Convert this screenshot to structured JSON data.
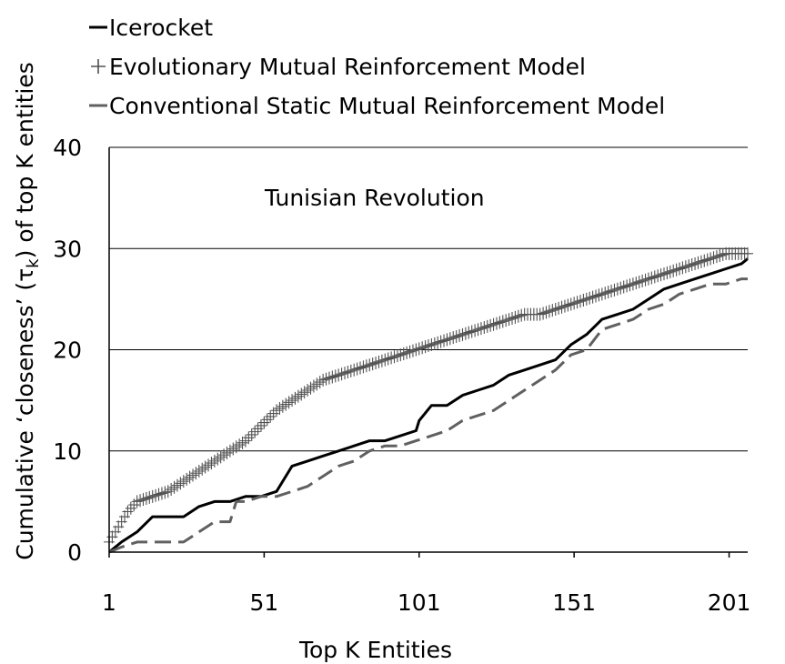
{
  "chart_data": {
    "type": "line",
    "annotation": "Tunisian Revolution",
    "xlabel": "Top K Entities",
    "ylabel_parts": [
      "Cumulative ‘closeness’ (τ",
      "k",
      ") of top K entities"
    ],
    "xlim": [
      1,
      207
    ],
    "ylim": [
      0,
      40
    ],
    "x_ticks": [
      1,
      51,
      101,
      151,
      201
    ],
    "y_ticks": [
      0,
      10,
      20,
      30,
      40
    ],
    "grid": "horizontal",
    "legend_position": "top-left",
    "series": [
      {
        "name": "Icerocket",
        "style": "solid",
        "color": "#000000",
        "points": [
          [
            1,
            0
          ],
          [
            5,
            1
          ],
          [
            10,
            2
          ],
          [
            15,
            3.5
          ],
          [
            20,
            3.5
          ],
          [
            25,
            3.5
          ],
          [
            30,
            4.5
          ],
          [
            35,
            5
          ],
          [
            40,
            5
          ],
          [
            45,
            5.5
          ],
          [
            50,
            5.5
          ],
          [
            55,
            6
          ],
          [
            60,
            8.5
          ],
          [
            65,
            9
          ],
          [
            70,
            9.5
          ],
          [
            75,
            10
          ],
          [
            80,
            10.5
          ],
          [
            85,
            11
          ],
          [
            90,
            11
          ],
          [
            95,
            11.5
          ],
          [
            100,
            12
          ],
          [
            101,
            13
          ],
          [
            105,
            14.5
          ],
          [
            110,
            14.5
          ],
          [
            115,
            15.5
          ],
          [
            120,
            16
          ],
          [
            125,
            16.5
          ],
          [
            130,
            17.5
          ],
          [
            135,
            18
          ],
          [
            140,
            18.5
          ],
          [
            145,
            19
          ],
          [
            150,
            20.5
          ],
          [
            155,
            21.5
          ],
          [
            160,
            23
          ],
          [
            165,
            23.5
          ],
          [
            170,
            24
          ],
          [
            175,
            25
          ],
          [
            180,
            26
          ],
          [
            185,
            26.5
          ],
          [
            190,
            27
          ],
          [
            195,
            27.5
          ],
          [
            200,
            28
          ],
          [
            205,
            28.5
          ],
          [
            207,
            29
          ]
        ]
      },
      {
        "name": "Evolutionary Mutual Reinforcement Model",
        "style": "plus",
        "color": "#505050",
        "points": [
          [
            1,
            1
          ],
          [
            3,
            2
          ],
          [
            5,
            3
          ],
          [
            7,
            4
          ],
          [
            10,
            5
          ],
          [
            15,
            5.5
          ],
          [
            20,
            6
          ],
          [
            25,
            7
          ],
          [
            30,
            8
          ],
          [
            35,
            9
          ],
          [
            40,
            10
          ],
          [
            45,
            11
          ],
          [
            50,
            12.5
          ],
          [
            55,
            14
          ],
          [
            60,
            15
          ],
          [
            65,
            16
          ],
          [
            70,
            17
          ],
          [
            75,
            17.5
          ],
          [
            80,
            18
          ],
          [
            85,
            18.5
          ],
          [
            90,
            19
          ],
          [
            95,
            19.5
          ],
          [
            100,
            20
          ],
          [
            105,
            20.5
          ],
          [
            110,
            21
          ],
          [
            115,
            21.5
          ],
          [
            120,
            22
          ],
          [
            125,
            22.5
          ],
          [
            130,
            23
          ],
          [
            135,
            23.5
          ],
          [
            140,
            23.5
          ],
          [
            145,
            24
          ],
          [
            150,
            24.5
          ],
          [
            155,
            25
          ],
          [
            160,
            25.5
          ],
          [
            165,
            26
          ],
          [
            170,
            26.5
          ],
          [
            175,
            27
          ],
          [
            180,
            27.5
          ],
          [
            185,
            28
          ],
          [
            190,
            28.5
          ],
          [
            195,
            29
          ],
          [
            200,
            29.5
          ],
          [
            205,
            29.5
          ],
          [
            207,
            29.5
          ]
        ]
      },
      {
        "name": "Conventional Static Mutual Reinforcement Model",
        "style": "dashed",
        "color": "#606060",
        "points": [
          [
            1,
            0
          ],
          [
            5,
            0.5
          ],
          [
            10,
            1
          ],
          [
            15,
            1
          ],
          [
            20,
            1
          ],
          [
            25,
            1
          ],
          [
            30,
            2
          ],
          [
            35,
            3
          ],
          [
            40,
            3
          ],
          [
            42,
            5
          ],
          [
            45,
            5
          ],
          [
            50,
            5.5
          ],
          [
            55,
            5.5
          ],
          [
            60,
            6
          ],
          [
            65,
            6.5
          ],
          [
            70,
            7.5
          ],
          [
            75,
            8.5
          ],
          [
            80,
            9
          ],
          [
            85,
            10
          ],
          [
            90,
            10.5
          ],
          [
            95,
            10.5
          ],
          [
            100,
            11
          ],
          [
            105,
            11.5
          ],
          [
            110,
            12
          ],
          [
            115,
            13
          ],
          [
            120,
            13.5
          ],
          [
            125,
            14
          ],
          [
            130,
            15
          ],
          [
            135,
            16
          ],
          [
            140,
            17
          ],
          [
            145,
            18
          ],
          [
            150,
            19.5
          ],
          [
            155,
            20
          ],
          [
            160,
            22
          ],
          [
            165,
            22.5
          ],
          [
            170,
            23
          ],
          [
            175,
            24
          ],
          [
            180,
            24.5
          ],
          [
            185,
            25.5
          ],
          [
            190,
            26
          ],
          [
            195,
            26.5
          ],
          [
            200,
            26.5
          ],
          [
            205,
            27
          ],
          [
            207,
            27
          ]
        ]
      }
    ]
  }
}
